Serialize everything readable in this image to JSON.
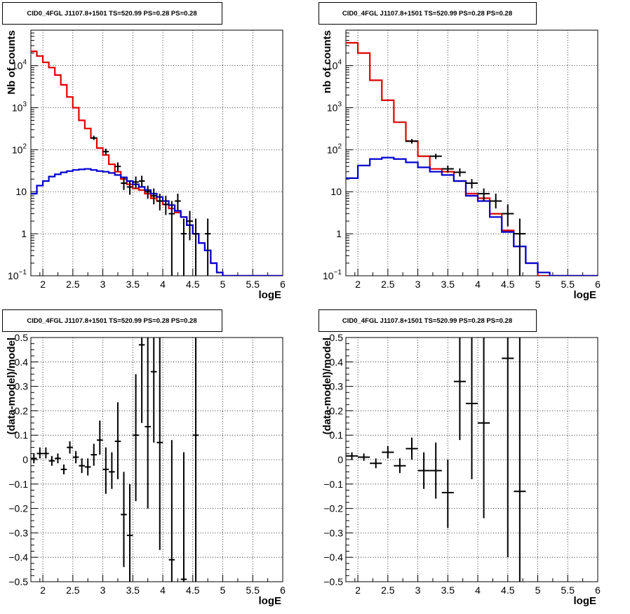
{
  "title": "CID0_4FGL J1107.8+1501 TS=520.99 PS=0.28 PS=0.28",
  "colors": {
    "model": "#e00000",
    "background": "#0000d0",
    "data": "#000000"
  },
  "chart_data": [
    {
      "id": "tl",
      "type": "line",
      "title": "CID0_4FGL J1107.8+1501 TS=520.99 PS=0.28 PS=0.28",
      "xlabel": "logE",
      "ylabel": "Nb of counts",
      "xlim": [
        1.8,
        6
      ],
      "ylim": [
        0.1,
        70000
      ],
      "yscale": "log",
      "grid": true,
      "xticks": [
        "2",
        "2.5",
        "3",
        "3.5",
        "4",
        "4.5",
        "5",
        "5.5",
        "6"
      ],
      "yticks": [
        {
          "v": 0.1,
          "b": "10",
          "e": "−1"
        },
        {
          "v": 1,
          "b": "1",
          "e": ""
        },
        {
          "v": 10,
          "b": "10",
          "e": ""
        },
        {
          "v": 100,
          "b": "10",
          "e": "2"
        },
        {
          "v": 1000,
          "b": "10",
          "e": "3"
        },
        {
          "v": 10000,
          "b": "10",
          "e": "4"
        }
      ],
      "bin_edges": [
        1.8,
        1.9,
        2.0,
        2.1,
        2.2,
        2.3,
        2.4,
        2.5,
        2.6,
        2.7,
        2.8,
        2.9,
        3.0,
        3.1,
        3.2,
        3.3,
        3.4,
        3.5,
        3.6,
        3.7,
        3.8,
        3.9,
        4.0,
        4.1,
        4.2,
        4.3,
        4.4,
        4.5,
        4.6,
        4.7,
        4.8,
        4.9,
        5.0,
        5.1,
        5.2,
        5.3,
        5.4,
        5.5,
        5.6,
        5.7,
        5.8,
        5.9,
        6.0
      ],
      "series": [
        {
          "role": "model",
          "color": "#e00000",
          "values": [
            22000,
            17000,
            12000,
            9000,
            6000,
            3500,
            1800,
            1000,
            500,
            320,
            190,
            110,
            75,
            45,
            30,
            20,
            15,
            12,
            11,
            9,
            7,
            6,
            5,
            4,
            3.2,
            2.5,
            1.6,
            1,
            0.6,
            0.4,
            0.2,
            0.12,
            0.1,
            0.1,
            0.1,
            0.1,
            0.1,
            0.1,
            0.1,
            0.1,
            0.1,
            0.1
          ]
        },
        {
          "role": "background",
          "color": "#0000d0",
          "values": [
            9,
            14,
            18,
            23,
            26,
            29,
            31,
            33,
            34,
            35,
            33,
            31,
            30,
            28,
            25,
            22,
            18,
            15,
            13,
            11,
            9,
            7.5,
            6,
            4.8,
            3.5,
            2.5,
            1.6,
            1,
            0.6,
            0.4,
            0.2,
            0.12,
            0.1,
            0.1,
            0.1,
            0.1,
            0.1,
            0.1,
            0.1,
            0.1,
            0.1,
            0.1
          ]
        }
      ],
      "points": [
        {
          "x": 2.85,
          "y": 190,
          "lo": 170,
          "hi": 215,
          "dx": 0.05
        },
        {
          "x": 3.05,
          "y": 90,
          "lo": 76,
          "hi": 106,
          "dx": 0.05
        },
        {
          "x": 3.25,
          "y": 40,
          "lo": 31,
          "hi": 50,
          "dx": 0.05
        },
        {
          "x": 3.35,
          "y": 16,
          "lo": 11,
          "hi": 22,
          "dx": 0.05
        },
        {
          "x": 3.45,
          "y": 13,
          "lo": 8.5,
          "hi": 18.5,
          "dx": 0.05
        },
        {
          "x": 3.55,
          "y": 17,
          "lo": 12,
          "hi": 23,
          "dx": 0.05
        },
        {
          "x": 3.65,
          "y": 18,
          "lo": 13,
          "hi": 24,
          "dx": 0.05
        },
        {
          "x": 3.75,
          "y": 10,
          "lo": 6.8,
          "hi": 14,
          "dx": 0.05
        },
        {
          "x": 3.85,
          "y": 8,
          "lo": 5,
          "hi": 12,
          "dx": 0.05
        },
        {
          "x": 3.95,
          "y": 6,
          "lo": 3.6,
          "hi": 9,
          "dx": 0.05
        },
        {
          "x": 4.05,
          "y": 5,
          "lo": 2.8,
          "hi": 8,
          "dx": 0.05
        },
        {
          "x": 4.15,
          "y": 3,
          "lo": 0.1,
          "hi": 6,
          "dx": 0.05
        },
        {
          "x": 4.25,
          "y": 6,
          "lo": 3.6,
          "hi": 9,
          "dx": 0.05
        },
        {
          "x": 4.35,
          "y": 1,
          "lo": 0.1,
          "hi": 2.3,
          "dx": 0.05
        },
        {
          "x": 4.45,
          "y": 2,
          "lo": 0.7,
          "hi": 3.5,
          "dx": 0.05
        },
        {
          "x": 4.55,
          "y": 1,
          "lo": 0.1,
          "hi": 2.3,
          "dx": 0.05
        },
        {
          "x": 4.75,
          "y": 1,
          "lo": 0.1,
          "hi": 2.3,
          "dx": 0.05
        }
      ]
    },
    {
      "id": "tr",
      "type": "line",
      "title": "CID0_4FGL J1107.8+1501 TS=520.99 PS=0.28 PS=0.28",
      "xlabel": "logE",
      "ylabel": "nb of counts",
      "xlim": [
        1.8,
        6
      ],
      "ylim": [
        0.1,
        70000
      ],
      "yscale": "log",
      "grid": true,
      "xticks": [
        "2",
        "2.5",
        "3",
        "3.5",
        "4",
        "4.5",
        "5",
        "5.5",
        "6"
      ],
      "yticks": [
        {
          "v": 0.1,
          "b": "10",
          "e": "−1"
        },
        {
          "v": 1,
          "b": "1",
          "e": ""
        },
        {
          "v": 10,
          "b": "10",
          "e": ""
        },
        {
          "v": 100,
          "b": "10",
          "e": "2"
        },
        {
          "v": 1000,
          "b": "10",
          "e": "3"
        },
        {
          "v": 10000,
          "b": "10",
          "e": "4"
        }
      ],
      "bin_edges": [
        1.8,
        2.0,
        2.2,
        2.4,
        2.6,
        2.8,
        3.0,
        3.2,
        3.4,
        3.6,
        3.8,
        4.0,
        4.2,
        4.4,
        4.6,
        4.8,
        5.0,
        5.2,
        5.4,
        5.6,
        5.8,
        6.0
      ],
      "series": [
        {
          "role": "model",
          "color": "#e00000",
          "values": [
            35000,
            20000,
            4500,
            1500,
            450,
            160,
            70,
            35,
            30,
            18,
            9,
            7,
            3,
            1.2,
            0.5,
            0.2,
            0.1,
            0.1,
            0.1,
            0.1,
            0.1
          ]
        },
        {
          "role": "background",
          "color": "#0000d0",
          "values": [
            21,
            42,
            60,
            65,
            60,
            50,
            38,
            30,
            25,
            18,
            8,
            6,
            2.5,
            1.1,
            0.5,
            0.2,
            0.12,
            0.1,
            0.1,
            0.1,
            0.1
          ]
        }
      ],
      "points": [
        {
          "x": 2.9,
          "y": 160,
          "lo": 140,
          "hi": 180,
          "dx": 0.1
        },
        {
          "x": 3.3,
          "y": 70,
          "lo": 60,
          "hi": 80,
          "dx": 0.1
        },
        {
          "x": 3.5,
          "y": 35,
          "lo": 29,
          "hi": 42,
          "dx": 0.1
        },
        {
          "x": 3.7,
          "y": 29,
          "lo": 23,
          "hi": 36,
          "dx": 0.1
        },
        {
          "x": 3.9,
          "y": 16,
          "lo": 12,
          "hi": 20,
          "dx": 0.1
        },
        {
          "x": 4.1,
          "y": 9,
          "lo": 6,
          "hi": 12,
          "dx": 0.1
        },
        {
          "x": 4.3,
          "y": 6,
          "lo": 4,
          "hi": 9,
          "dx": 0.1
        },
        {
          "x": 4.5,
          "y": 3,
          "lo": 1.5,
          "hi": 5,
          "dx": 0.1
        },
        {
          "x": 4.7,
          "y": 1,
          "lo": 0.1,
          "hi": 2.3,
          "dx": 0.1
        }
      ]
    },
    {
      "id": "bl",
      "type": "scatter",
      "title": "CID0_4FGL J1107.8+1501 TS=520.99 PS=0.28 PS=0.28",
      "xlabel": "logE",
      "ylabel": "(data-model)/model",
      "xlim": [
        1.8,
        6
      ],
      "ylim": [
        -0.5,
        0.5
      ],
      "yscale": "linear",
      "grid": true,
      "xticks": [
        "2",
        "2.5",
        "3",
        "3.5",
        "4",
        "4.5",
        "5",
        "5.5",
        "6"
      ],
      "yticks": [
        "−0.5",
        "−0.4",
        "−0.3",
        "−0.2",
        "−0.1",
        "0",
        "0.1",
        "0.2",
        "0.3",
        "0.4",
        "0.5"
      ],
      "points": [
        {
          "x": 1.85,
          "y": 0.005,
          "lo": -0.015,
          "hi": 0.025,
          "dx": 0.05
        },
        {
          "x": 1.95,
          "y": 0.025,
          "lo": 0.005,
          "hi": 0.05,
          "dx": 0.05
        },
        {
          "x": 2.05,
          "y": 0.025,
          "lo": 0.005,
          "hi": 0.05,
          "dx": 0.05
        },
        {
          "x": 2.15,
          "y": -0.005,
          "lo": -0.025,
          "hi": 0.015,
          "dx": 0.05
        },
        {
          "x": 2.25,
          "y": 0.005,
          "lo": -0.015,
          "hi": 0.025,
          "dx": 0.05
        },
        {
          "x": 2.35,
          "y": -0.04,
          "lo": -0.06,
          "hi": -0.02,
          "dx": 0.05
        },
        {
          "x": 2.45,
          "y": 0.05,
          "lo": 0.025,
          "hi": 0.075,
          "dx": 0.05
        },
        {
          "x": 2.55,
          "y": 0.01,
          "lo": -0.015,
          "hi": 0.035,
          "dx": 0.05
        },
        {
          "x": 2.65,
          "y": -0.025,
          "lo": -0.055,
          "hi": 0.005,
          "dx": 0.05
        },
        {
          "x": 2.75,
          "y": -0.03,
          "lo": -0.065,
          "hi": 0.005,
          "dx": 0.05
        },
        {
          "x": 2.85,
          "y": 0.02,
          "lo": -0.025,
          "hi": 0.065,
          "dx": 0.05
        },
        {
          "x": 2.95,
          "y": 0.08,
          "lo": 0.02,
          "hi": 0.16,
          "dx": 0.05
        },
        {
          "x": 3.05,
          "y": -0.04,
          "lo": -0.14,
          "hi": 0.05,
          "dx": 0.05
        },
        {
          "x": 3.15,
          "y": -0.05,
          "lo": -0.12,
          "hi": 0.03,
          "dx": 0.05
        },
        {
          "x": 3.25,
          "y": 0.075,
          "lo": -0.08,
          "hi": 0.235,
          "dx": 0.05
        },
        {
          "x": 3.35,
          "y": -0.225,
          "lo": -0.44,
          "hi": -0.05,
          "dx": 0.05
        },
        {
          "x": 3.45,
          "y": -0.31,
          "lo": -0.5,
          "hi": -0.1,
          "dx": 0.05
        },
        {
          "x": 3.55,
          "y": 0.1,
          "lo": -0.17,
          "hi": 0.35,
          "dx": 0.05
        },
        {
          "x": 3.65,
          "y": 0.47,
          "lo": 0.15,
          "hi": 0.5,
          "dx": 0.05
        },
        {
          "x": 3.75,
          "y": 0.135,
          "lo": -0.2,
          "hi": 0.5,
          "dx": 0.05
        },
        {
          "x": 3.85,
          "y": 0.36,
          "lo": 0.07,
          "hi": 0.5,
          "dx": 0.05
        },
        {
          "x": 3.95,
          "y": 0.07,
          "lo": -0.37,
          "hi": 0.5,
          "dx": 0.05
        },
        {
          "x": 4.15,
          "y": -0.41,
          "lo": -0.5,
          "hi": 0.08,
          "dx": 0.05
        },
        {
          "x": 4.35,
          "y": -0.49,
          "lo": -0.5,
          "hi": 0.03,
          "dx": 0.05
        },
        {
          "x": 4.55,
          "y": 0.1,
          "lo": -0.5,
          "hi": 0.5,
          "dx": 0.05
        }
      ]
    },
    {
      "id": "br",
      "type": "scatter",
      "title": "CID0_4FGL J1107.8+1501 TS=520.99 PS=0.28 PS=0.28",
      "xlabel": "logE",
      "ylabel": "(data-model)/model",
      "xlim": [
        1.8,
        6
      ],
      "ylim": [
        -0.5,
        0.5
      ],
      "yscale": "linear",
      "grid": true,
      "xticks": [
        "2",
        "2.5",
        "3",
        "3.5",
        "4",
        "4.5",
        "5",
        "5.5",
        "6"
      ],
      "yticks": [
        "−0.5",
        "−0.4",
        "−0.3",
        "−0.2",
        "−0.1",
        "0",
        "0.1",
        "0.2",
        "0.3",
        "0.4",
        "0.5"
      ],
      "points": [
        {
          "x": 1.9,
          "y": 0.015,
          "lo": 0.0,
          "hi": 0.03,
          "dx": 0.1
        },
        {
          "x": 2.1,
          "y": 0.01,
          "lo": -0.005,
          "hi": 0.025,
          "dx": 0.1
        },
        {
          "x": 2.3,
          "y": -0.015,
          "lo": -0.035,
          "hi": 0.005,
          "dx": 0.1
        },
        {
          "x": 2.5,
          "y": 0.03,
          "lo": 0.005,
          "hi": 0.055,
          "dx": 0.1
        },
        {
          "x": 2.7,
          "y": -0.025,
          "lo": -0.055,
          "hi": 0.005,
          "dx": 0.1
        },
        {
          "x": 2.9,
          "y": 0.045,
          "lo": 0.0,
          "hi": 0.09,
          "dx": 0.1
        },
        {
          "x": 3.1,
          "y": -0.045,
          "lo": -0.12,
          "hi": 0.03,
          "dx": 0.1
        },
        {
          "x": 3.3,
          "y": -0.045,
          "lo": -0.16,
          "hi": 0.07,
          "dx": 0.1
        },
        {
          "x": 3.5,
          "y": -0.135,
          "lo": -0.28,
          "hi": 0.0,
          "dx": 0.1
        },
        {
          "x": 3.7,
          "y": 0.32,
          "lo": 0.08,
          "hi": 0.5,
          "dx": 0.1
        },
        {
          "x": 3.9,
          "y": 0.23,
          "lo": -0.08,
          "hi": 0.5,
          "dx": 0.1
        },
        {
          "x": 4.1,
          "y": 0.15,
          "lo": -0.24,
          "hi": 0.5,
          "dx": 0.1
        },
        {
          "x": 4.5,
          "y": 0.415,
          "lo": -0.4,
          "hi": 0.5,
          "dx": 0.1
        },
        {
          "x": 4.7,
          "y": -0.13,
          "lo": -0.5,
          "hi": 0.5,
          "dx": 0.1
        }
      ]
    }
  ]
}
